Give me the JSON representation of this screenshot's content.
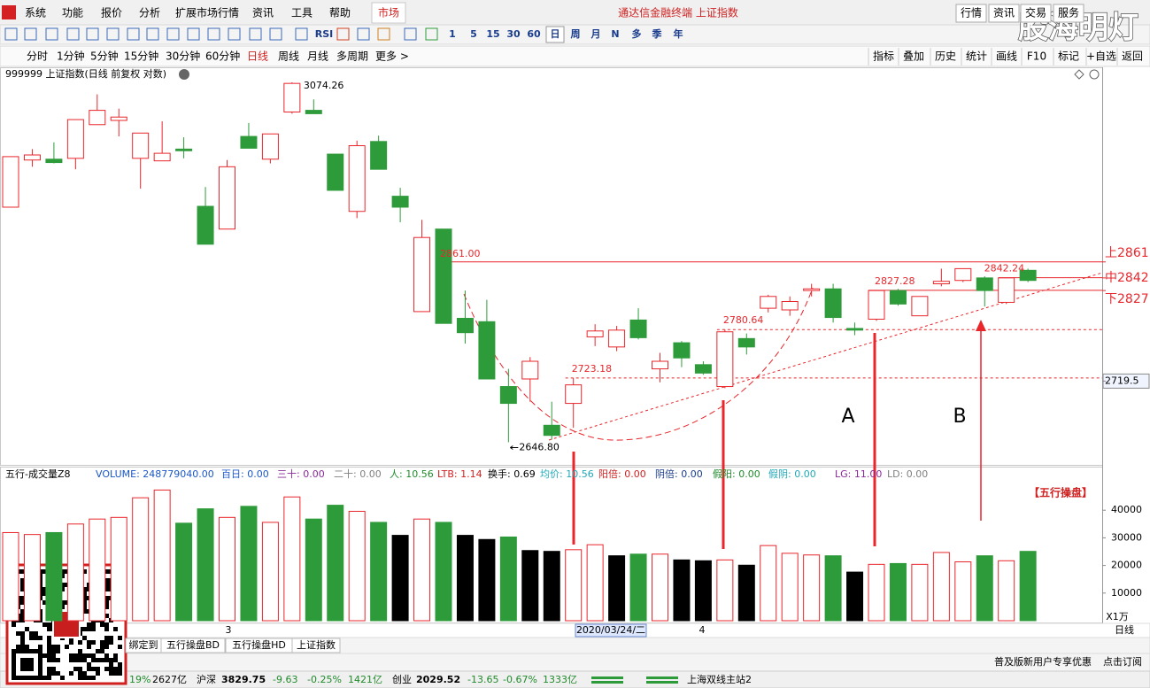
{
  "menu": {
    "items": [
      "系统",
      "功能",
      "报价",
      "分析",
      "扩展市场行情",
      "资讯",
      "工具",
      "帮助"
    ],
    "active": "市场",
    "title": "通达信金融终端 上证指数",
    "right": [
      "行情",
      "资讯",
      "交易",
      "服务"
    ]
  },
  "watermark": "股海明灯",
  "toolbar": {
    "labels": [
      "RSI",
      "1",
      "5",
      "15",
      "30",
      "60",
      "日",
      "周",
      "月",
      "N",
      "多",
      "季",
      "年"
    ],
    "active": 6
  },
  "periods": {
    "items": [
      "分时",
      "1分钟",
      "5分钟",
      "15分钟",
      "30分钟",
      "60分钟",
      "日线",
      "周线",
      "月线",
      "多周期",
      "更多 >"
    ],
    "active": 6,
    "right_buttons": [
      "指标",
      "叠加",
      "历史",
      "统计",
      "画线",
      "F10",
      "标记",
      "+自选",
      "返回"
    ]
  },
  "chart_header": "999999 上证指数(日线 前复权 对数)",
  "chart_data": [
    {
      "type": "candlestick",
      "up_color": "#e8262b",
      "down_color": "#2e9b3a",
      "open": [
        2926,
        2982,
        2983,
        2984,
        3024,
        3029,
        2984,
        2981,
        2995,
        2927,
        2900,
        3010,
        2983,
        3039,
        3041,
        2989,
        2921,
        3004,
        2939,
        2802,
        2900,
        2794,
        2790,
        2713,
        2722,
        2667,
        2693,
        2772,
        2760,
        2792,
        2734,
        2765,
        2739,
        2713,
        2770,
        2806,
        2804,
        2827,
        2829,
        2782,
        2793,
        2827,
        2797,
        2835,
        2839,
        2842,
        2813,
        2851
      ],
      "close": [
        2986,
        2988,
        2979,
        3030,
        3041,
        3033,
        3014,
        2990,
        2993,
        2882,
        2974,
        2996,
        3013,
        3073,
        3037,
        2946,
        2999,
        2971,
        2926,
        2890,
        2788,
        2777,
        2722,
        2693,
        2743,
        2655,
        2715,
        2779,
        2780,
        2771,
        2743,
        2747,
        2729,
        2778,
        2760,
        2820,
        2814,
        2829,
        2795,
        2780,
        2827,
        2811,
        2820,
        2838,
        2853,
        2827,
        2842,
        2839
      ],
      "high": [
        2986,
        2995,
        3003,
        3030,
        3060,
        3043,
        3014,
        3028,
        3009,
        2950,
        2982,
        3026,
        3013,
        3074.26,
        3054,
        2989,
        3005,
        3011,
        2949,
        2911,
        2900,
        2827,
        2816,
        2734,
        2748,
        2695,
        2723.18,
        2787,
        2785,
        2806,
        2753,
        2767,
        2743,
        2780.64,
        2776,
        2822,
        2820,
        2835,
        2835,
        2789,
        2827.28,
        2829,
        2820,
        2853,
        2853,
        2844,
        2842.24,
        2853
      ],
      "low": [
        2926,
        2974,
        2978,
        2971,
        3024,
        3010,
        2948,
        2981,
        2984,
        2882,
        2900,
        2996,
        2978,
        3037,
        3037,
        2946,
        2913,
        2971,
        2908,
        2802,
        2788,
        2764,
        2722,
        2646.8,
        2695,
        2650,
        2664,
        2761,
        2755,
        2769,
        2718,
        2736,
        2727,
        2711,
        2751,
        2801,
        2797,
        2820,
        2789,
        2774,
        2791,
        2809,
        2797,
        2832,
        2837,
        2808,
        2811,
        2837
      ],
      "ylim": [
        2620,
        3090
      ],
      "yticks": [
        {
          "value": 2861,
          "label": "上2861"
        },
        {
          "value": 2842,
          "label": "中2842"
        },
        {
          "value": 2827,
          "label": "下2827"
        },
        2719.5
      ],
      "annotations": [
        3074.26,
        {
          "value": 2646.8,
          "label": "2646.80"
        },
        {
          "value": 2861,
          "label": "2861.00"
        },
        2723.18,
        2780.64,
        2827.28,
        2842.24
      ],
      "levels": [
        {
          "value": 2861,
          "style": "solid"
        },
        {
          "value": 2842.24,
          "style": "solid"
        },
        {
          "value": 2827.28,
          "style": "solid"
        },
        {
          "value": 2780.64,
          "style": "dashed"
        },
        {
          "value": 2723.18,
          "style": "dashed"
        }
      ],
      "line_color": "#e8262b"
    },
    {
      "type": "bar",
      "title": "五行-成交量Z8",
      "values": [
        31900,
        31200,
        31900,
        35000,
        36800,
        37400,
        44500,
        47300,
        35300,
        40500,
        37400,
        41400,
        35600,
        44800,
        36800,
        41800,
        39600,
        35600,
        30900,
        36800,
        35600,
        30900,
        29400,
        30300,
        25400,
        25100,
        25700,
        27500,
        23500,
        24100,
        24100,
        22000,
        21700,
        22000,
        20100,
        27200,
        24400,
        23800,
        23500,
        17600,
        20400,
        20700,
        20400,
        24700,
        21300,
        23500,
        21700,
        25100
      ],
      "colors": [
        "#e8262b",
        "#e8262b",
        "#2e9b3a",
        "#e8262b",
        "#e8262b",
        "#e8262b",
        "#e8262b",
        "#e8262b",
        "#2e9b3a",
        "#2e9b3a",
        "#e8262b",
        "#2e9b3a",
        "#e8262b",
        "#e8262b",
        "#2e9b3a",
        "#2e9b3a",
        "#e8262b",
        "#2e9b3a",
        "#000000",
        "#e8262b",
        "#2e9b3a",
        "#000000",
        "#000000",
        "#2e9b3a",
        "#000000",
        "#000000",
        "#e8262b",
        "#e8262b",
        "#000000",
        "#2e9b3a",
        "#e8262b",
        "#000000",
        "#000000",
        "#e8262b",
        "#000000",
        "#e8262b",
        "#e8262b",
        "#e8262b",
        "#2e9b3a",
        "#000000",
        "#e8262b",
        "#2e9b3a",
        "#e8262b",
        "#e8262b",
        "#e8262b",
        "#2e9b3a",
        "#e8262b",
        "#2e9b3a"
      ],
      "ylim": [
        0,
        50000
      ],
      "yticks": [
        40000,
        30000,
        20000,
        10000
      ],
      "unit": "X1万",
      "items": [
        {
          "text": "VOLUME: 248779040.00",
          "color": "#1a56c8"
        },
        {
          "text": "百日: 0.00",
          "color": "#1a56c8"
        },
        {
          "text": "三十: 0.00",
          "color": "#8a2a9a"
        },
        {
          "text": "二十: 0.00",
          "color": "#808080"
        },
        {
          "text": "人: 10.56",
          "color": "#1f8a2a"
        },
        {
          "text": "LTB: 1.14",
          "color": "#d02020"
        },
        {
          "text": "换手: 0.69",
          "color": "#000000"
        },
        {
          "text": "均价: 10.56",
          "color": "#20a8b8"
        },
        {
          "text": "阳倍: 0.00",
          "color": "#d02020"
        },
        {
          "text": "阴倍: 0.00",
          "color": "#1a3c8c"
        },
        {
          "text": "假阳: 0.00",
          "color": "#1f8a2a"
        },
        {
          "text": "假阴: 0.00",
          "color": "#20a8b8"
        },
        {
          "text": "LG: 11.00",
          "color": "#8a2a9a"
        },
        {
          "text": "LD: 0.00",
          "color": "#808080"
        }
      ]
    }
  ],
  "marks": {
    "a": "A",
    "b": "B",
    "brand": "【五行操盘】"
  },
  "x_axis": {
    "labels": [
      "3",
      "2020/03/24/二",
      "4"
    ],
    "period": "日线"
  },
  "tabs": [
    "绑定到",
    "五行操盘BD",
    "五行操盘HD",
    "上证指数"
  ],
  "promo": {
    "text": "普及版新用户专享优惠",
    "link": "点击订阅"
  },
  "status": {
    "first": "19%",
    "first_amount": "2627亿",
    "items": [
      {
        "name": "沪深",
        "value": "3829.75",
        "change": "-9.63",
        "pct": "-0.25%",
        "amount": "1421亿"
      },
      {
        "name": "创业",
        "value": "2029.52",
        "change": "-13.65",
        "pct": "-0.67%",
        "amount": "1333亿"
      }
    ],
    "server": "上海双线主站2"
  }
}
